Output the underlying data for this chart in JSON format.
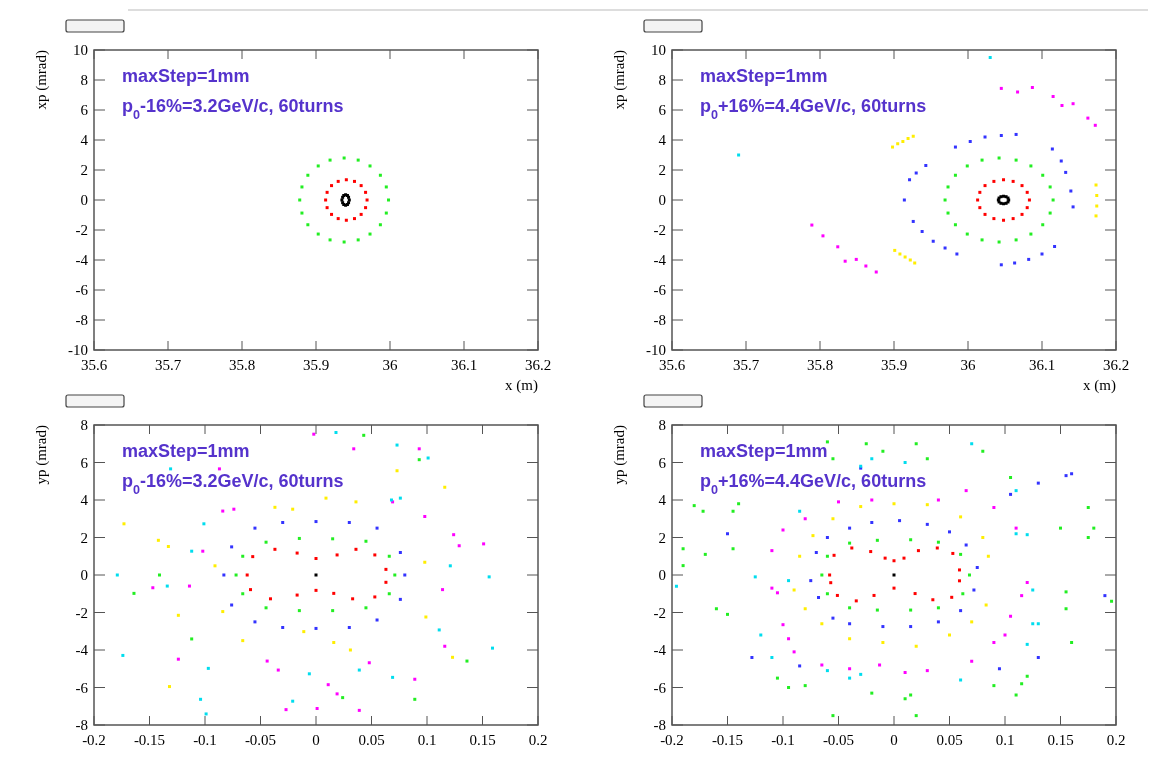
{
  "chart_data": [
    {
      "type": "scatter",
      "xlabel": "x (m)",
      "ylabel": "xp (mrad)",
      "annotations": [
        "maxStep=1mm",
        "p$_{0}$-16%=3.2GeV/c, 60turns"
      ],
      "marker": "square",
      "xlim": [
        35.6,
        36.2
      ],
      "ylim": [
        -10,
        10
      ],
      "xticks": [
        35.6,
        35.7,
        35.8,
        35.9,
        36,
        36.1,
        36.2
      ],
      "yticks": [
        -10,
        -8,
        -6,
        -4,
        -2,
        0,
        2,
        4,
        6,
        8,
        10
      ],
      "series": [
        {
          "color": "#000000",
          "x": [
            35.945,
            35.944,
            35.9425,
            35.94,
            35.9375,
            35.936,
            35.935,
            35.936,
            35.9375,
            35.94,
            35.9425,
            35.944
          ],
          "values": [
            0,
            0.18,
            0.3,
            0.35,
            0.3,
            0.18,
            0,
            -0.18,
            -0.3,
            -0.35,
            -0.3,
            -0.18
          ]
        },
        {
          "color": "#ff0000",
          "x": [
            35.969,
            35.967,
            35.961,
            35.952,
            35.941,
            35.93,
            35.921,
            35.915,
            35.913,
            35.915,
            35.921,
            35.93,
            35.941,
            35.952,
            35.961,
            35.967
          ],
          "values": [
            0,
            0.51,
            0.96,
            1.24,
            1.35,
            1.24,
            0.96,
            0.51,
            0,
            -0.51,
            -0.96,
            -1.24,
            -1.35,
            -1.24,
            -0.96,
            -0.51
          ]
        },
        {
          "color": "#22ee22",
          "x": [
            35.998,
            35.995,
            35.987,
            35.973,
            35.957,
            35.938,
            35.919,
            35.903,
            35.889,
            35.881,
            35.878,
            35.881,
            35.889,
            35.903,
            35.919,
            35.938,
            35.957,
            35.973,
            35.987,
            35.995
          ],
          "values": [
            0,
            0.87,
            1.65,
            2.27,
            2.66,
            2.8,
            2.66,
            2.27,
            1.65,
            0.87,
            0,
            -0.87,
            -1.65,
            -2.27,
            -2.66,
            -2.8,
            -2.66,
            -2.27,
            -1.65,
            -0.87
          ]
        }
      ]
    },
    {
      "type": "scatter",
      "xlabel": "x (m)",
      "ylabel": "xp (mrad)",
      "annotations": [
        "maxStep=1mm",
        "p$_{0}$+16%=4.4GeV/c, 60turns"
      ],
      "marker": "square",
      "xlim": [
        35.6,
        36.2
      ],
      "ylim": [
        -10,
        10
      ],
      "xticks": [
        35.6,
        35.7,
        35.8,
        35.9,
        36,
        36.1,
        36.2
      ],
      "yticks": [
        -10,
        -8,
        -6,
        -4,
        -2,
        0,
        2,
        4,
        6,
        8,
        10
      ],
      "series": [
        {
          "color": "#000000",
          "x": [
            36.055,
            36.054,
            36.0515,
            36.048,
            36.0445,
            36.042,
            36.041,
            36.042,
            36.0445,
            36.048,
            36.0515,
            36.054
          ],
          "values": [
            0,
            0.13,
            0.22,
            0.25,
            0.22,
            0.13,
            0,
            -0.13,
            -0.22,
            -0.25,
            -0.22,
            -0.13
          ]
        },
        {
          "color": "#ff0000",
          "x": [
            36.083,
            36.08,
            36.073,
            36.061,
            36.048,
            36.035,
            36.023,
            36.016,
            36.013,
            36.016,
            36.023,
            36.035,
            36.048,
            36.061,
            36.073,
            36.08
          ],
          "values": [
            0,
            0.51,
            0.96,
            1.24,
            1.35,
            1.24,
            0.96,
            0.51,
            0,
            -0.51,
            -0.96,
            -1.24,
            -1.35,
            -1.24,
            -0.96,
            -0.51
          ]
        },
        {
          "color": "#22ee22",
          "x": [
            36.115,
            36.111,
            36.101,
            36.085,
            36.065,
            36.042,
            36.019,
            35.999,
            35.983,
            35.973,
            35.969,
            35.973,
            35.983,
            35.999,
            36.019,
            36.042,
            36.065,
            36.085,
            36.101,
            36.111
          ],
          "values": [
            0,
            0.87,
            1.65,
            2.27,
            2.66,
            2.8,
            2.66,
            2.27,
            1.65,
            0.87,
            0,
            -0.87,
            -1.65,
            -2.27,
            -2.66,
            -2.8,
            -2.66,
            -2.27,
            -1.65,
            -0.87
          ]
        },
        {
          "color": "#3333ff",
          "x": [
            35.983,
            36.003,
            36.023,
            36.045,
            36.065,
            36.114,
            36.126,
            36.132,
            36.139,
            36.142,
            36.117,
            36.1,
            36.082,
            36.063,
            36.045,
            35.943,
            35.93,
            35.921,
            35.914,
            35.926,
            35.938,
            35.953,
            35.969,
            35.985
          ],
          "values": [
            3.53,
            3.9,
            4.2,
            4.3,
            4.37,
            3.4,
            2.6,
            1.84,
            0.6,
            -0.46,
            -3.1,
            -3.6,
            -3.96,
            -4.2,
            -4.32,
            2.3,
            1.8,
            1.35,
            0,
            -1.43,
            -2.1,
            -2.75,
            -3.2,
            -3.6
          ]
        },
        {
          "color": "#ffee00",
          "x": [
            35.898,
            35.905,
            35.912,
            35.919,
            35.926,
            36.173,
            36.174,
            36.174,
            36.173,
            35.901,
            35.908,
            35.915,
            35.922,
            35.928
          ],
          "values": [
            3.53,
            3.75,
            3.9,
            4.1,
            4.25,
            1.0,
            0.3,
            -0.4,
            -1.06,
            -3.36,
            -3.6,
            -3.8,
            -4.0,
            -4.2
          ]
        },
        {
          "color": "#ff00ff",
          "x": [
            36.045,
            36.067,
            36.087,
            36.115,
            36.127,
            36.142,
            36.162,
            36.172,
            35.789,
            35.804,
            35.824,
            35.834,
            35.849,
            35.862,
            35.876
          ],
          "values": [
            7.44,
            7.2,
            7.5,
            6.9,
            6.3,
            6.42,
            5.46,
            4.98,
            -1.67,
            -2.39,
            -3.12,
            -4.08,
            -3.96,
            -4.4,
            -4.8
          ]
        },
        {
          "color": "#00ddee",
          "x": [
            35.69,
            36.03
          ],
          "values": [
            3.0,
            9.5
          ]
        }
      ]
    },
    {
      "type": "scatter",
      "ylabel": "yp (mrad)",
      "annotations": [
        "maxStep=1mm",
        "p$_{0}$-16%=3.2GeV/c, 60turns"
      ],
      "marker": "square",
      "xlim": [
        -0.2,
        0.2
      ],
      "ylim": [
        -8,
        8
      ],
      "xticks": [
        -0.2,
        -0.15,
        -0.1,
        -0.05,
        0,
        0.05,
        0.1,
        0.15,
        0.2
      ],
      "yticks": [
        -8,
        -6,
        -4,
        -2,
        0,
        2,
        4,
        6,
        8
      ],
      "series": [
        {
          "color": "#000000",
          "x": [
            0
          ],
          "values": [
            0
          ]
        },
        {
          "color": "#ff0000",
          "x": [
            -0.062,
            -0.057,
            -0.037,
            -0.017,
            0,
            0.019,
            0.036,
            0.053,
            0.063,
            0.063,
            0.053,
            0.033,
            0.016,
            0,
            -0.017,
            -0.041,
            -0.059
          ],
          "values": [
            0,
            0.98,
            1.37,
            1.17,
            0.88,
            1.07,
            1.37,
            1.07,
            0.3,
            -0.39,
            -1.17,
            -1.27,
            -0.98,
            -0.82,
            -1.07,
            -1.27,
            -0.78
          ]
        },
        {
          "color": "#22ee22",
          "x": [
            -0.072,
            -0.066,
            -0.045,
            -0.015,
            0.015,
            0.045,
            0.066,
            0.071,
            0.066,
            0.045,
            0.015,
            -0.015,
            -0.045,
            -0.066,
            -0.164,
            -0.141,
            -0.112,
            0.043,
            0.093,
            0.136,
            0.089,
            0.024
          ],
          "values": [
            0,
            1.0,
            1.75,
            1.95,
            1.93,
            1.8,
            1.0,
            0,
            -1.0,
            -1.75,
            -1.9,
            -1.9,
            -1.75,
            -1.0,
            -0.98,
            0,
            -3.41,
            7.45,
            6.15,
            -4.59,
            -6.63,
            -6.54
          ]
        },
        {
          "color": "#3333ff",
          "x": [
            -0.083,
            -0.076,
            -0.055,
            -0.03,
            0,
            0.03,
            0.055,
            0.076,
            0.08,
            0.076,
            0.055,
            0.03,
            0,
            -0.03,
            -0.055,
            -0.076
          ],
          "values": [
            0,
            1.5,
            2.5,
            2.8,
            2.85,
            2.8,
            2.5,
            1.2,
            0,
            -1.3,
            -2.4,
            -2.8,
            -2.85,
            -2.8,
            -2.5,
            -1.6
          ]
        },
        {
          "color": "#ffee00",
          "x": [
            -0.173,
            -0.142,
            -0.133,
            -0.091,
            -0.124,
            -0.066,
            -0.132,
            -0.037,
            -0.021,
            0.009,
            0.036,
            0.073,
            0.116,
            0.098,
            0.099,
            0.123,
            -0.011,
            0.016,
            0.031,
            -0.084
          ],
          "values": [
            2.73,
            1.85,
            1.52,
            0.49,
            -2.15,
            -3.5,
            -5.95,
            3.61,
            3.51,
            4.1,
            3.9,
            5.56,
            4.68,
            0.68,
            -2.24,
            -4.39,
            -3.02,
            -3.6,
            -4.0,
            -1.95
          ]
        },
        {
          "color": "#ff00ff",
          "x": [
            -0.002,
            0.034,
            0.093,
            0.098,
            0.124,
            0.129,
            0.151,
            0.114,
            0.116,
            0.089,
            0.048,
            0.019,
            0.011,
            0.039,
            -0.027,
            0.001,
            -0.034,
            -0.044,
            -0.124,
            -0.147,
            -0.114,
            -0.102,
            -0.084,
            -0.074,
            -0.087,
            0.069
          ],
          "values": [
            7.51,
            6.73,
            6.73,
            3.12,
            2.15,
            1.56,
            1.66,
            -0.78,
            -3.8,
            -5.56,
            -4.68,
            -6.34,
            -5.85,
            -7.22,
            -7.18,
            -7.12,
            -5.07,
            -4.59,
            -4.49,
            -0.68,
            -0.59,
            1.27,
            3.41,
            3.51,
            5.66,
            3.9
          ]
        },
        {
          "color": "#00ddee",
          "x": [
            -0.179,
            -0.174,
            -0.134,
            -0.112,
            -0.101,
            -0.131,
            -0.097,
            -0.104,
            -0.099,
            0.018,
            0.073,
            0.101,
            0.121,
            0.111,
            0.156,
            0.159,
            0.069,
            0.039,
            -0.006,
            -0.021,
            0.068,
            0.076
          ],
          "values": [
            0,
            -4.29,
            -0.59,
            1.27,
            2.73,
            5.66,
            -4.98,
            -6.63,
            -7.41,
            7.6,
            6.93,
            6.24,
            0.49,
            -2.93,
            -0.1,
            -3.9,
            -5.46,
            -5.07,
            -5.27,
            -6.73,
            4.0,
            4.1
          ]
        }
      ]
    },
    {
      "type": "scatter",
      "ylabel": "yp (mrad)",
      "annotations": [
        "maxStep=1mm",
        "p$_{0}$+16%=4.4GeV/c, 60turns"
      ],
      "marker": "square",
      "xlim": [
        -0.2,
        0.2
      ],
      "ylim": [
        -8,
        8
      ],
      "xticks": [
        -0.2,
        -0.15,
        -0.1,
        -0.05,
        0,
        0.05,
        0.1,
        0.15,
        0.2
      ],
      "yticks": [
        -8,
        -6,
        -4,
        -2,
        0,
        2,
        4,
        6,
        8
      ],
      "series": [
        {
          "color": "#000000",
          "x": [
            0
          ],
          "values": [
            0
          ]
        },
        {
          "color": "#ff0000",
          "x": [
            -0.058,
            -0.054,
            -0.038,
            -0.021,
            -0.008,
            0,
            0.009,
            0.022,
            0.039,
            0.053,
            0.059,
            0.059,
            0.052,
            0.035,
            0.019,
            0,
            -0.018,
            -0.034,
            -0.051,
            -0.057
          ],
          "values": [
            0,
            1.05,
            1.44,
            1.25,
            0.9,
            0.76,
            0.9,
            1.3,
            1.44,
            1.15,
            0.27,
            -0.31,
            -1.19,
            -1.32,
            -0.99,
            -0.7,
            -1.09,
            -1.38,
            -1.09,
            -0.41
          ]
        },
        {
          "color": "#22ee22",
          "x": [
            -0.065,
            -0.06,
            -0.04,
            -0.015,
            0.015,
            0.04,
            0.06,
            0.068,
            0.062,
            0.04,
            0.015,
            -0.015,
            -0.04,
            -0.06,
            -0.18,
            -0.172,
            -0.14,
            -0.145,
            -0.145,
            -0.17,
            -0.19,
            -0.19,
            -0.16,
            -0.15,
            -0.105,
            -0.095,
            -0.08,
            -0.055,
            -0.02,
            0.01,
            0.015,
            0.02,
            0.09,
            0.11,
            0.115,
            0.12,
            0.16,
            0.155,
            0.155,
            0.196,
            0.18,
            0.175,
            0.175,
            0.15,
            0.105,
            0.08,
            0.03,
            -0.06,
            -0.055,
            -0.025,
            -0.01,
            0.02
          ],
          "values": [
            0,
            1.0,
            1.7,
            1.85,
            1.88,
            1.75,
            1.1,
            0,
            -1.0,
            -1.75,
            -1.87,
            -1.87,
            -1.75,
            -1.0,
            3.7,
            3.4,
            3.8,
            3.4,
            1.4,
            1.1,
            1.4,
            0.5,
            -1.8,
            -2.1,
            -5.5,
            -6.0,
            -5.9,
            -7.5,
            -6.3,
            -6.6,
            -6.4,
            -7.5,
            -5.9,
            -6.4,
            -5.8,
            -5.4,
            -3.6,
            -1.8,
            -0.9,
            -1.4,
            2.5,
            3.6,
            2.0,
            2.5,
            5.2,
            6.6,
            6.2,
            7.1,
            6.2,
            7.0,
            6.6,
            7.0
          ]
        },
        {
          "color": "#3333ff",
          "x": [
            -0.075,
            -0.07,
            -0.06,
            -0.04,
            -0.02,
            0.005,
            0.03,
            0.05,
            0.065,
            0.075,
            0.072,
            0.06,
            0.04,
            0.015,
            -0.01,
            -0.04,
            -0.055,
            -0.068,
            -0.15,
            -0.128,
            -0.085,
            0.155,
            0.16,
            0.19,
            0.13,
            0.13,
            0.105,
            -0.03,
            0.095
          ],
          "values": [
            -0.3,
            1.2,
            2.0,
            2.5,
            2.8,
            2.9,
            2.7,
            2.3,
            1.6,
            0.4,
            -0.8,
            -1.9,
            -2.5,
            -2.75,
            -2.75,
            -2.6,
            -2.3,
            -1.2,
            2.2,
            -4.4,
            -4.85,
            5.3,
            5.4,
            -1.1,
            -4.4,
            4.9,
            4.3,
            5.7,
            -5.0
          ]
        },
        {
          "color": "#ffee00",
          "x": [
            -0.09,
            -0.085,
            -0.073,
            -0.055,
            -0.03,
            0,
            0.03,
            0.06,
            0.08,
            0.085,
            0.083,
            0.07,
            0.05,
            0.02,
            -0.01,
            -0.04,
            -0.065,
            -0.08
          ],
          "values": [
            -0.8,
            1.0,
            2.1,
            3.0,
            3.65,
            3.8,
            3.75,
            3.1,
            2.0,
            1.0,
            -1.6,
            -2.5,
            -3.2,
            -3.8,
            -3.6,
            -3.4,
            -2.6,
            -1.8
          ]
        },
        {
          "color": "#ff00ff",
          "x": [
            -0.11,
            -0.105,
            -0.1,
            -0.095,
            -0.09,
            -0.065,
            -0.04,
            -0.013,
            0.01,
            0.03,
            0.07,
            0.09,
            0.1,
            0.105,
            0.115,
            0.12,
            0.11,
            0.09,
            0.065,
            0.04,
            -0.02,
            -0.05,
            -0.08,
            -0.1,
            -0.11
          ],
          "values": [
            -0.7,
            -0.95,
            -2.65,
            -3.4,
            -4.1,
            -4.8,
            -5.0,
            -4.8,
            -5.2,
            -5.1,
            -4.6,
            -3.6,
            -3.2,
            -2.2,
            -1.1,
            -0.4,
            2.5,
            3.6,
            4.5,
            4.0,
            4.0,
            3.9,
            3.0,
            2.4,
            1.3
          ]
        },
        {
          "color": "#00ddee",
          "x": [
            -0.196,
            -0.125,
            -0.12,
            -0.11,
            -0.095,
            -0.085,
            -0.04,
            -0.03,
            0.01,
            0.06,
            0.11,
            0.11,
            0.12,
            0.12,
            0.125,
            0.13,
            0.125,
            0.07,
            -0.03,
            -0.06,
            -0.02
          ],
          "values": [
            -0.6,
            -0.1,
            -3.2,
            -4.4,
            -0.3,
            3.4,
            -5.5,
            5.8,
            6.0,
            -5.6,
            4.5,
            2.2,
            2.15,
            -3.7,
            -2.6,
            -2.6,
            -0.8,
            7.0,
            -5.3,
            -5.1,
            6.2
          ]
        }
      ]
    }
  ]
}
